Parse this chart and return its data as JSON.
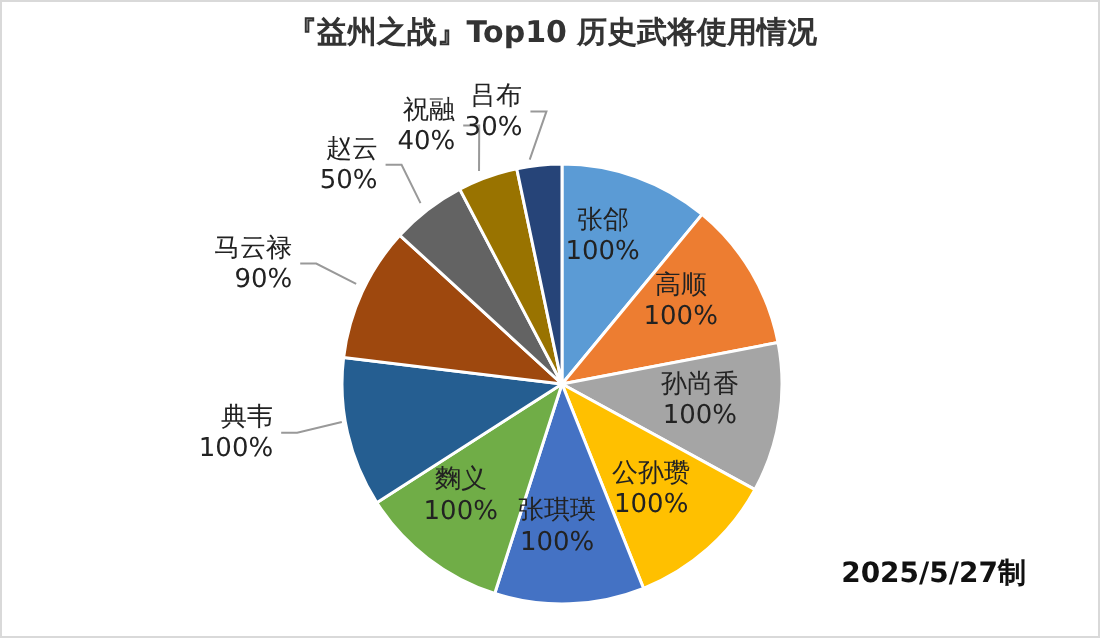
{
  "chart_data": {
    "type": "pie",
    "title": "『益州之战』Top10 历史武将使用情况",
    "categories": [
      "张郃",
      "高顺",
      "孙尚香",
      "公孙瓒",
      "张琪瑛",
      "麴义",
      "典韦",
      "马云禄",
      "赵云",
      "祝融",
      "吕布"
    ],
    "values": [
      100,
      100,
      100,
      100,
      100,
      100,
      100,
      90,
      50,
      40,
      30
    ],
    "value_labels": [
      "100%",
      "100%",
      "100%",
      "100%",
      "100%",
      "100%",
      "100%",
      "90%",
      "50%",
      "40%",
      "30%"
    ],
    "colors": [
      "#5b9bd5",
      "#ed7d31",
      "#a5a5a5",
      "#ffc000",
      "#4472c4",
      "#70ad47",
      "#255e91",
      "#9e480e",
      "#636363",
      "#997300",
      "#264478"
    ],
    "legend": false,
    "annotations": [
      "2025/5/27制"
    ]
  }
}
